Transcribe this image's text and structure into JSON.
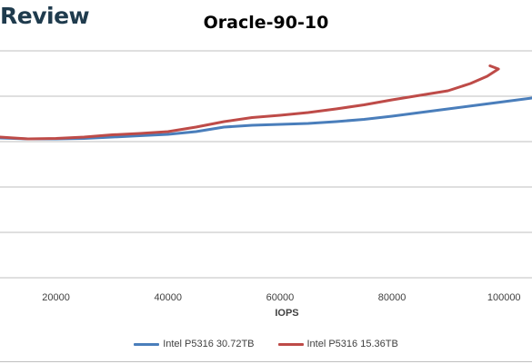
{
  "watermark": "Review",
  "chart_data": {
    "type": "line",
    "title": "Oracle-90-10",
    "xlabel": "IOPS",
    "ylabel": "",
    "xlim": [
      10000,
      105000
    ],
    "ylim": [
      0,
      5
    ],
    "x_ticks": [
      20000,
      40000,
      60000,
      80000,
      100000
    ],
    "x_tick_labels": [
      "20000",
      "40000",
      "60000",
      "80000",
      "100000"
    ],
    "grid": true,
    "legend_position": "bottom",
    "series": [
      {
        "name": "Intel P5316 30.72TB",
        "color": "#4a7ebb",
        "points": [
          [
            10000,
            3.08
          ],
          [
            15000,
            3.06
          ],
          [
            20000,
            3.06
          ],
          [
            25000,
            3.07
          ],
          [
            30000,
            3.1
          ],
          [
            35000,
            3.13
          ],
          [
            40000,
            3.16
          ],
          [
            45000,
            3.22
          ],
          [
            50000,
            3.32
          ],
          [
            55000,
            3.36
          ],
          [
            60000,
            3.38
          ],
          [
            65000,
            3.4
          ],
          [
            70000,
            3.44
          ],
          [
            75000,
            3.49
          ],
          [
            80000,
            3.56
          ],
          [
            85000,
            3.64
          ],
          [
            90000,
            3.72
          ],
          [
            95000,
            3.8
          ],
          [
            100000,
            3.88
          ],
          [
            105000,
            3.96
          ]
        ]
      },
      {
        "name": "Intel P5316 15.36TB",
        "color": "#be4b48",
        "points": [
          [
            10000,
            3.1
          ],
          [
            15000,
            3.06
          ],
          [
            20000,
            3.07
          ],
          [
            25000,
            3.1
          ],
          [
            30000,
            3.15
          ],
          [
            35000,
            3.18
          ],
          [
            40000,
            3.22
          ],
          [
            45000,
            3.32
          ],
          [
            50000,
            3.44
          ],
          [
            55000,
            3.53
          ],
          [
            60000,
            3.58
          ],
          [
            65000,
            3.64
          ],
          [
            70000,
            3.72
          ],
          [
            75000,
            3.81
          ],
          [
            80000,
            3.92
          ],
          [
            85000,
            4.02
          ],
          [
            90000,
            4.12
          ],
          [
            94000,
            4.28
          ],
          [
            97000,
            4.44
          ],
          [
            99000,
            4.6
          ],
          [
            97500,
            4.67
          ]
        ]
      }
    ]
  }
}
